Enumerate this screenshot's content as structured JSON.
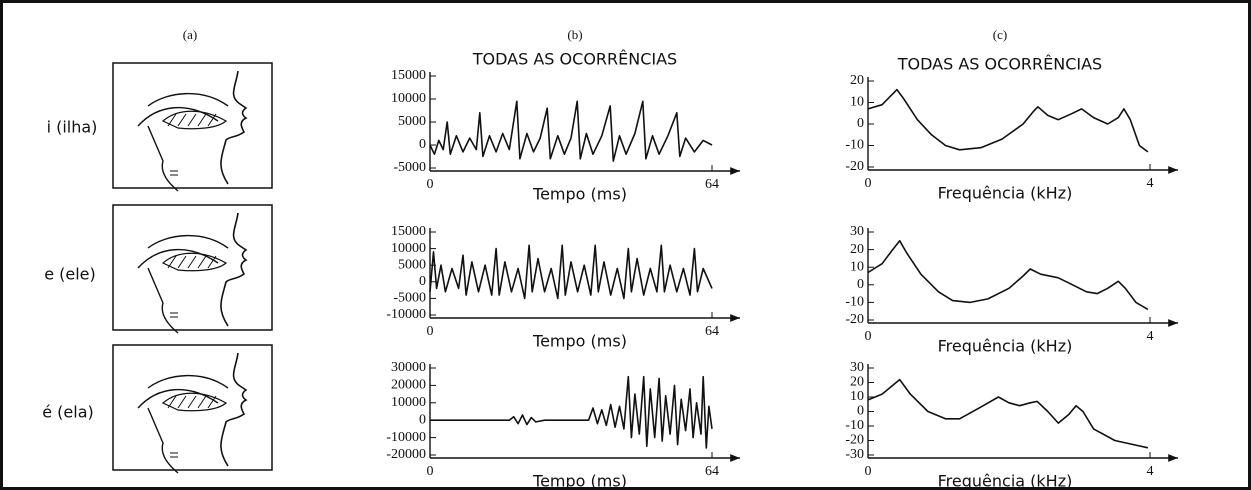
{
  "panel_labels": [
    "(a)",
    "(b)",
    "(c)"
  ],
  "vowels": [
    "i (ilha)",
    "e (ele)",
    "é (ela)"
  ],
  "chart_data": [
    {
      "type": "line",
      "title": "TODAS AS OCORRÊNCIAS",
      "x_label": "Tempo (ms)",
      "color": "#111111",
      "x": [
        0,
        1,
        2,
        3,
        3.9,
        4.6,
        6,
        7.5,
        9,
        10.5,
        11.3,
        12,
        13.5,
        15,
        16.5,
        18,
        19.7,
        20.4,
        22,
        23.5,
        25,
        26.6,
        27.3,
        29,
        30.5,
        32,
        33.4,
        34.1,
        35.5,
        37,
        39,
        40.9,
        41.6,
        43,
        44.5,
        46.5,
        48.3,
        49,
        50.5,
        52,
        54,
        56,
        56.7,
        58,
        60,
        62,
        64
      ],
      "values": [
        0,
        -2000,
        1000,
        -1000,
        5000,
        -2000,
        2000,
        -1500,
        1500,
        -1000,
        7000,
        -2500,
        2000,
        -1500,
        2500,
        -1000,
        9500,
        -3000,
        2500,
        -1500,
        1500,
        8000,
        -3000,
        2000,
        -2000,
        1500,
        9500,
        -3000,
        2500,
        -2000,
        2000,
        8500,
        -3500,
        2000,
        -2000,
        2500,
        9500,
        -3000,
        2000,
        -2000,
        2000,
        7000,
        -2500,
        1500,
        -1500,
        1000,
        0
      ],
      "xlim": [
        0,
        64
      ],
      "xticks": [
        0,
        64
      ],
      "ylim": [
        -5000,
        15000
      ],
      "yticks": [
        -5000,
        0,
        5000,
        10000,
        15000
      ]
    },
    {
      "type": "line",
      "title": "TODAS AS OCORRÊNCIAS",
      "x_label": "Frequência (kHz)",
      "color": "#111111",
      "x": [
        0,
        0.2,
        0.35,
        0.41,
        0.5,
        0.7,
        0.9,
        1.1,
        1.3,
        1.6,
        1.9,
        2.2,
        2.35,
        2.41,
        2.55,
        2.7,
        2.9,
        3.03,
        3.2,
        3.4,
        3.55,
        3.63,
        3.72,
        3.85,
        3.97
      ],
      "values": [
        7,
        9,
        14,
        16,
        12,
        2,
        -5,
        -10,
        -12,
        -11,
        -7,
        0,
        6,
        8,
        4,
        2,
        5,
        7,
        3,
        0,
        3,
        7,
        2,
        -10,
        -13
      ],
      "xlim": [
        0,
        4
      ],
      "xticks": [
        0,
        4
      ],
      "ylim": [
        -20,
        20
      ],
      "yticks": [
        -20,
        -10,
        0,
        10,
        20
      ]
    },
    {
      "type": "line",
      "x_label": "Tempo (ms)",
      "color": "#111111",
      "x": [
        0,
        0.8,
        1.5,
        2.5,
        3.5,
        5,
        6.5,
        7.5,
        8.2,
        9.5,
        11,
        12.5,
        14,
        15,
        15.7,
        17,
        18.5,
        20,
        21.5,
        22.5,
        23.2,
        24.5,
        26,
        27.5,
        29,
        30,
        30.7,
        32,
        33.5,
        35,
        36.5,
        37.5,
        38.2,
        39.5,
        41,
        42.5,
        44,
        45,
        45.7,
        47,
        48.5,
        50,
        51.5,
        52.5,
        53.2,
        54.5,
        56,
        57.5,
        59,
        60,
        60.7,
        62,
        64
      ],
      "values": [
        -3000,
        9000,
        -2000,
        5000,
        -3000,
        4000,
        -2000,
        8000,
        -4000,
        6000,
        -3000,
        5000,
        -4000,
        10000,
        -4000,
        6000,
        -3000,
        4000,
        -5000,
        11000,
        -3000,
        7000,
        -3000,
        4000,
        -5000,
        11000,
        -4000,
        6000,
        -3000,
        5000,
        -4000,
        11000,
        -3000,
        6000,
        -4000,
        4000,
        -5000,
        10000,
        -3000,
        7000,
        -4000,
        4000,
        -3000,
        11000,
        -3000,
        5000,
        -3000,
        4000,
        -4000,
        10000,
        -3000,
        4000,
        -2000
      ],
      "xlim": [
        0,
        64
      ],
      "xticks": [
        0,
        64
      ],
      "ylim": [
        -10000,
        15000
      ],
      "yticks": [
        -10000,
        -5000,
        0,
        5000,
        10000,
        15000
      ]
    },
    {
      "type": "line",
      "x_label": "Frequência (kHz)",
      "color": "#111111",
      "x": [
        0,
        0.2,
        0.35,
        0.45,
        0.55,
        0.75,
        1.0,
        1.2,
        1.45,
        1.7,
        2.0,
        2.2,
        2.3,
        2.45,
        2.7,
        2.9,
        3.1,
        3.25,
        3.4,
        3.55,
        3.65,
        3.8,
        3.97
      ],
      "values": [
        7,
        12,
        20,
        25,
        18,
        6,
        -4,
        -9,
        -10,
        -8,
        -2,
        5,
        9,
        6,
        4,
        0,
        -4,
        -5,
        -2,
        2,
        -2,
        -10,
        -14
      ],
      "xlim": [
        0,
        4
      ],
      "xticks": [
        0,
        4
      ],
      "ylim": [
        -20,
        30
      ],
      "yticks": [
        -20,
        -10,
        0,
        10,
        20,
        30
      ]
    },
    {
      "type": "line",
      "x_label": "Tempo (ms)",
      "color": "#111111",
      "x": [
        0,
        10,
        18,
        19,
        20,
        21,
        22,
        23,
        24,
        26,
        36,
        37,
        38,
        39,
        40,
        41,
        42,
        43,
        44,
        45,
        45.7,
        46.5,
        47.5,
        48.5,
        49.2,
        50,
        51,
        52,
        52.7,
        53.5,
        54.5,
        55.5,
        56.2,
        57,
        58,
        59,
        59.7,
        60.5,
        61.5,
        62,
        62.7,
        63.3,
        64
      ],
      "values": [
        0,
        0,
        0,
        2000,
        -2000,
        3000,
        -2500,
        1500,
        -1000,
        0,
        0,
        7000,
        -2000,
        6000,
        -3000,
        9000,
        -4000,
        8000,
        -5000,
        25000,
        -10000,
        15000,
        -8000,
        25000,
        -15000,
        18000,
        -10000,
        24000,
        -12000,
        14000,
        -8000,
        20000,
        -14000,
        12000,
        -6000,
        18000,
        -10000,
        10000,
        -8000,
        25000,
        -16000,
        8000,
        -5000
      ],
      "xlim": [
        0,
        64
      ],
      "xticks": [
        0,
        64
      ],
      "ylim": [
        -20000,
        30000
      ],
      "yticks": [
        -20000,
        -10000,
        0,
        10000,
        20000,
        30000
      ]
    },
    {
      "type": "line",
      "x_label": "Frequência (kHz)",
      "color": "#111111",
      "x": [
        0,
        0.2,
        0.35,
        0.45,
        0.6,
        0.85,
        1.1,
        1.3,
        1.6,
        1.85,
        2.0,
        2.15,
        2.3,
        2.4,
        2.55,
        2.7,
        2.85,
        2.95,
        3.05,
        3.2,
        3.5,
        3.97
      ],
      "values": [
        8,
        12,
        18,
        22,
        12,
        0,
        -5,
        -5,
        3,
        10,
        6,
        4,
        6,
        7,
        0,
        -8,
        -2,
        4,
        0,
        -12,
        -20,
        -25
      ],
      "xlim": [
        0,
        4
      ],
      "xticks": [
        0,
        4
      ],
      "ylim": [
        -30,
        30
      ],
      "yticks": [
        -30,
        -20,
        -10,
        0,
        10,
        20,
        30
      ]
    }
  ]
}
